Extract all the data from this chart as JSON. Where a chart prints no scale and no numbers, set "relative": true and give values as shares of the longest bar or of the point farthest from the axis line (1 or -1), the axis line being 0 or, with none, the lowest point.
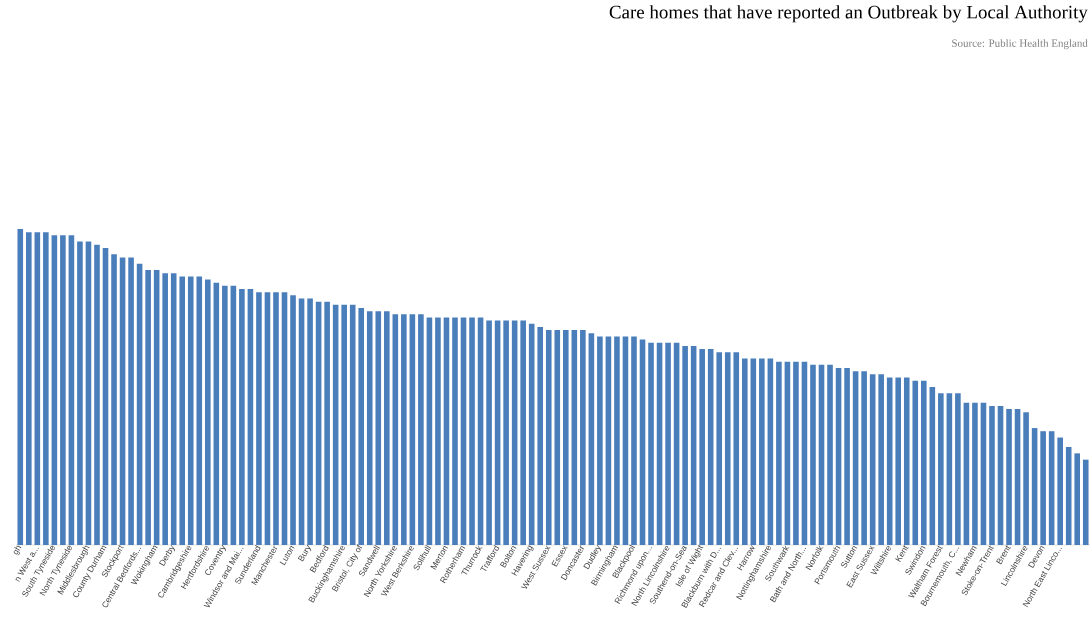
{
  "chart_data": {
    "type": "bar",
    "title": "Care homes that have reported an Outbreak by Local Authority",
    "subtitle": "Source: Public Health England",
    "relative": true,
    "color": "#4a7ebb",
    "categories": [
      "gh",
      null,
      "n West a...",
      null,
      "South Tyneside",
      null,
      "North Tyneside",
      null,
      "Middlesbrough",
      null,
      "County Durham",
      null,
      "Stockport",
      null,
      "Central Bedfords...",
      null,
      "Wokingham",
      null,
      "Derby",
      null,
      "Cambridgeshire",
      null,
      "Hertfordshire",
      null,
      "Coventry",
      null,
      "Windsor and Mai...",
      null,
      "Sunderland",
      null,
      "Manchester",
      null,
      "Luton",
      null,
      "Bury",
      null,
      "Bedford",
      null,
      "Buckinghamshire",
      null,
      "Bristol, City of",
      null,
      "Sandwell",
      null,
      "North Yorkshire",
      null,
      "West Berkshire",
      null,
      "Solihull",
      null,
      "Merton",
      null,
      "Rotherham",
      null,
      "Thurrock",
      null,
      "Trafford",
      null,
      "Bolton",
      null,
      "Havering",
      null,
      "West Sussex",
      null,
      "Essex",
      null,
      "Doncaster",
      null,
      "Dudley",
      null,
      "Birmingham",
      null,
      "Blackpool",
      null,
      "Richmond upon...",
      null,
      "North Lincolnshire",
      null,
      "Southend-on-Sea",
      null,
      "Isle of Wight",
      null,
      "Blackburn with D...",
      null,
      "Redcar and Clev...",
      null,
      "Harrow",
      null,
      "Nottinghamshire",
      null,
      "Southwark",
      null,
      "Bath and North...",
      null,
      "Norfolk",
      null,
      "Portsmouth",
      null,
      "Sutton",
      null,
      "East Sussex",
      null,
      "Wiltshire",
      null,
      "Kent",
      null,
      "Swindon",
      null,
      "Waltham Forest",
      null,
      "Bournemouth, C...",
      null,
      "Newham",
      null,
      "Stoke-on-Trent",
      null,
      "Brent",
      null,
      "Lincolnshire",
      null,
      "Devon",
      null,
      "North East Linco...",
      null,
      null,
      null
    ],
    "values": [
      1.0,
      0.99,
      0.99,
      0.99,
      0.98,
      0.98,
      0.98,
      0.96,
      0.96,
      0.95,
      0.94,
      0.92,
      0.91,
      0.91,
      0.89,
      0.87,
      0.87,
      0.86,
      0.86,
      0.85,
      0.85,
      0.85,
      0.84,
      0.83,
      0.82,
      0.82,
      0.81,
      0.81,
      0.8,
      0.8,
      0.8,
      0.8,
      0.79,
      0.78,
      0.78,
      0.77,
      0.77,
      0.76,
      0.76,
      0.76,
      0.75,
      0.74,
      0.74,
      0.74,
      0.73,
      0.73,
      0.73,
      0.73,
      0.72,
      0.72,
      0.72,
      0.72,
      0.72,
      0.72,
      0.72,
      0.71,
      0.71,
      0.71,
      0.71,
      0.71,
      0.7,
      0.69,
      0.68,
      0.68,
      0.68,
      0.68,
      0.68,
      0.67,
      0.66,
      0.66,
      0.66,
      0.66,
      0.66,
      0.65,
      0.64,
      0.64,
      0.64,
      0.64,
      0.63,
      0.63,
      0.62,
      0.62,
      0.61,
      0.61,
      0.61,
      0.59,
      0.59,
      0.59,
      0.59,
      0.58,
      0.58,
      0.58,
      0.58,
      0.57,
      0.57,
      0.57,
      0.56,
      0.56,
      0.55,
      0.55,
      0.54,
      0.54,
      0.53,
      0.53,
      0.53,
      0.52,
      0.52,
      0.5,
      0.48,
      0.48,
      0.48,
      0.45,
      0.45,
      0.45,
      0.44,
      0.44,
      0.43,
      0.43,
      0.42,
      0.37,
      0.36,
      0.36,
      0.34,
      0.31,
      0.29,
      0.27
    ]
  }
}
